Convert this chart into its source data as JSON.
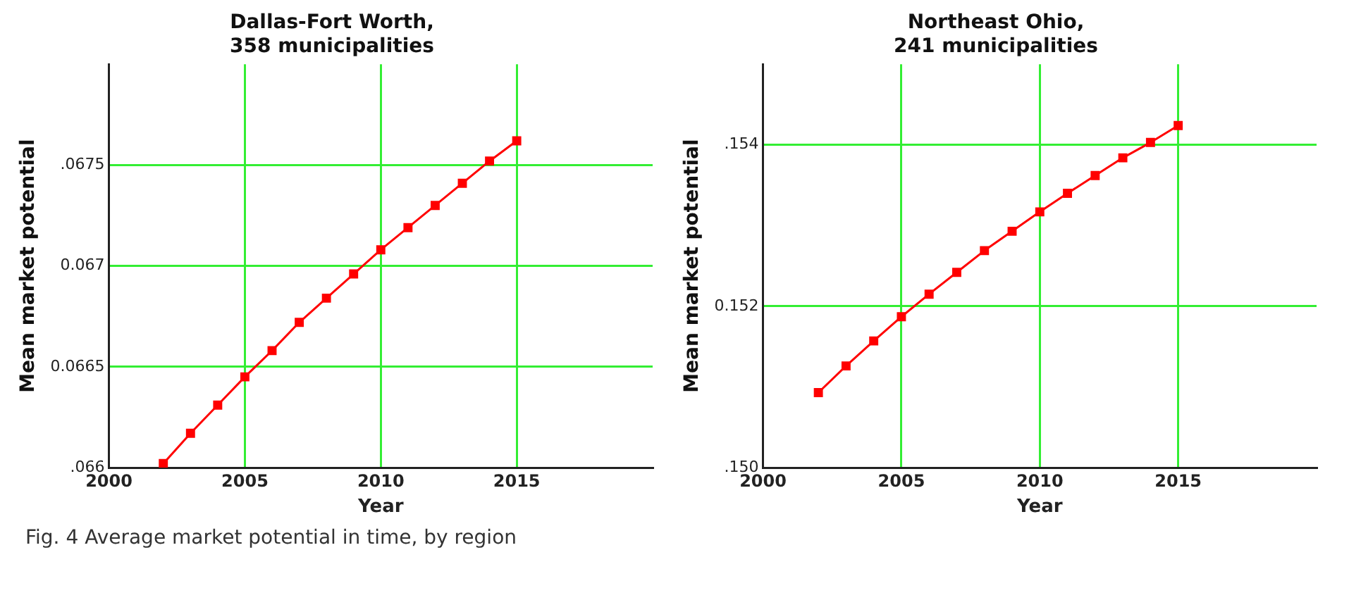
{
  "chart_data": [
    {
      "type": "line",
      "title": "Dallas-Fort Worth,\n358 municipalities",
      "xlabel": "Year",
      "ylabel": "Mean market potential",
      "x": [
        2002,
        2003,
        2004,
        2005,
        2006,
        2007,
        2008,
        2009,
        2010,
        2011,
        2012,
        2013,
        2014,
        2015
      ],
      "series": [
        {
          "color": "#ff0000",
          "values": [
            0.06602,
            0.06617,
            0.06631,
            0.06645,
            0.06658,
            0.06672,
            0.06684,
            0.06696,
            0.06708,
            0.06719,
            0.0673,
            0.06741,
            0.06752,
            0.06762
          ]
        }
      ],
      "xlim": [
        2000,
        2020
      ],
      "xticks": [
        2000,
        2005,
        2010,
        2015
      ],
      "ylim": [
        0.066,
        0.068
      ],
      "yticks": [
        {
          "value": 0.066,
          "label": ".066"
        },
        {
          "value": 0.0665,
          "label": "0.0665"
        },
        {
          "value": 0.067,
          "label": "0.067"
        },
        {
          "value": 0.0675,
          "label": ".0675"
        }
      ],
      "grid": true,
      "marker": "square",
      "line_style": "solid",
      "annotations": [
        "Fig. 4 Average market potential in time, by region"
      ]
    },
    {
      "type": "line",
      "title": "Northeast Ohio,\n241 municipalities",
      "xlabel": "Year",
      "ylabel": "Mean market potential",
      "x": [
        2002,
        2003,
        2004,
        2005,
        2006,
        2007,
        2008,
        2009,
        2010,
        2011,
        2012,
        2013,
        2014,
        2015
      ],
      "series": [
        {
          "color": "#ff0000",
          "values": [
            0.15093,
            0.15126,
            0.15157,
            0.15187,
            0.15215,
            0.15242,
            0.15269,
            0.15293,
            0.15317,
            0.1534,
            0.15362,
            0.15384,
            0.15403,
            0.15424
          ]
        }
      ],
      "xlim": [
        2000,
        2020
      ],
      "xticks": [
        2000,
        2005,
        2010,
        2015
      ],
      "ylim": [
        0.15,
        0.155
      ],
      "yticks": [
        {
          "value": 0.15,
          "label": ".150"
        },
        {
          "value": 0.152,
          "label": "0.152"
        },
        {
          "value": 0.154,
          "label": ".154"
        }
      ],
      "grid": true,
      "marker": "square",
      "line_style": "solid"
    }
  ]
}
